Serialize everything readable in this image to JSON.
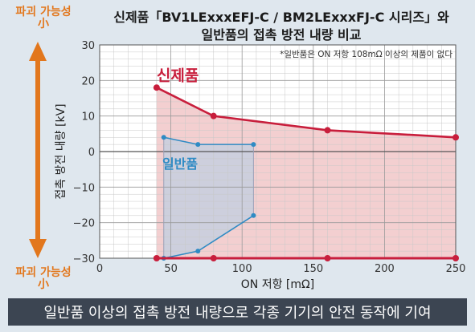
{
  "title": {
    "line1": "신제품「BV1LExxxEFJ-C / BM2LExxxFJ-C 시리즈」와",
    "line2": "일반품의 접촉 방전 내량 비교"
  },
  "side_labels": {
    "top_line1": "파괴 가능성",
    "top_line2": "小",
    "bottom_line1": "파괴 가능성",
    "bottom_line2": "小"
  },
  "colors": {
    "new_product": "#c81e3c",
    "new_fill": "#f3cfd0",
    "general_product": "#2f8bc4",
    "general_fill": "#c9cede",
    "arrow": "#e2771d",
    "grid": "#c8c8c8",
    "plot_bg": "#ffffff"
  },
  "footer_text": "일반품 이상의 접촉 방전 내량으로 각종 기기의 안전 동작에 기여",
  "chart_data": {
    "type": "line",
    "xlabel": "ON 저항 [mΩ]",
    "ylabel": "접촉 방전 내량 [kV]",
    "xlim": [
      0,
      250
    ],
    "ylim": [
      -30,
      30
    ],
    "xticks": [
      0,
      50,
      100,
      150,
      200,
      250
    ],
    "yticks": [
      30,
      20,
      10,
      0,
      -10,
      -20,
      -30
    ],
    "ytick_labels": [
      "30",
      "20",
      "10",
      "0",
      "−10",
      "−20",
      "−30"
    ],
    "grid": true,
    "note": "*일반품은 ON 저항 108mΩ 이상의 제품이 없다",
    "series": [
      {
        "name": "신제품",
        "part": "positive",
        "x": [
          40,
          80,
          160,
          250
        ],
        "y": [
          18,
          10,
          6,
          4
        ]
      },
      {
        "name": "신제품",
        "part": "negative",
        "x": [
          40,
          80,
          160,
          250
        ],
        "y": [
          -30,
          -30,
          -30,
          -30
        ]
      },
      {
        "name": "일반품",
        "part": "positive",
        "x": [
          45,
          69,
          108
        ],
        "y": [
          4,
          2,
          2
        ]
      },
      {
        "name": "일반품",
        "part": "negative",
        "x": [
          45,
          69,
          108
        ],
        "y": [
          -30,
          -28,
          -18
        ]
      }
    ],
    "annotations": [
      {
        "text": "신제품",
        "x": 40,
        "y": 20
      },
      {
        "text": "일반품",
        "x": 44,
        "y": -2.5
      }
    ]
  }
}
